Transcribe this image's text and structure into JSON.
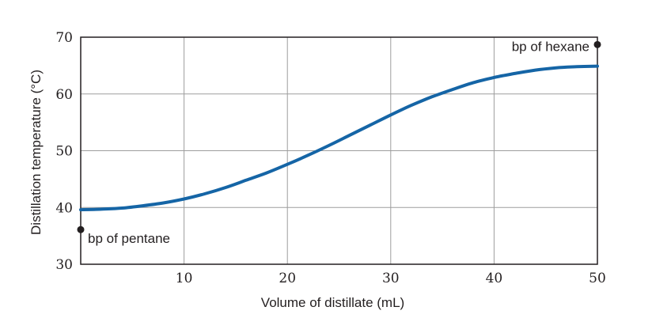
{
  "chart_data": {
    "type": "line",
    "title": "",
    "xlabel": "Volume of distillate (mL)",
    "ylabel": "Distillation temperature (°C)",
    "xlim": [
      0,
      50
    ],
    "ylim": [
      30,
      70
    ],
    "xticks": [
      10,
      20,
      30,
      40,
      50
    ],
    "yticks": [
      30,
      40,
      50,
      60,
      70
    ],
    "grid": true,
    "series": [
      {
        "color": "#1565a6",
        "x": [
          0,
          2,
          4,
          6,
          8,
          10,
          12,
          14,
          16,
          18,
          20,
          22,
          24,
          26,
          28,
          30,
          32,
          34,
          36,
          38,
          40,
          42,
          44,
          46,
          48,
          50
        ],
        "y": [
          39.6,
          39.7,
          39.9,
          40.3,
          40.8,
          41.5,
          42.4,
          43.5,
          44.8,
          46.1,
          47.6,
          49.2,
          50.9,
          52.7,
          54.5,
          56.3,
          58.0,
          59.5,
          60.8,
          62.0,
          62.9,
          63.6,
          64.2,
          64.6,
          64.8,
          64.9
        ]
      }
    ],
    "points": [
      {
        "label": "bp of pentane",
        "x": 0,
        "y": 36.1
      },
      {
        "label": "bp of hexane",
        "x": 50,
        "y": 68.7
      }
    ]
  }
}
